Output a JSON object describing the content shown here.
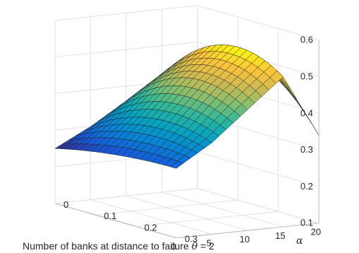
{
  "chart_data": {
    "type": "surface",
    "xlabel_prefix": "Number of banks at distance to failure",
    "xlabel_symbol": "θ",
    "xlabel_suffix": " = 2",
    "ylabel": "α",
    "x_ticks": [
      20,
      15,
      10,
      5,
      0
    ],
    "x_tick_labels": [
      "20",
      "15",
      "10",
      "5",
      "0"
    ],
    "y_ticks": [
      0,
      0.1,
      0.2,
      0.3
    ],
    "y_tick_labels": [
      "0",
      "0.1",
      "0.2",
      "0.3"
    ],
    "z_ticks": [
      0.1,
      0.2,
      0.3,
      0.4,
      0.5,
      0.6
    ],
    "z_tick_labels": [
      "0.1",
      "0.2",
      "0.3",
      "0.4",
      "0.5",
      "0.6"
    ],
    "xlim": [
      0,
      20
    ],
    "ylim": [
      0,
      0.3
    ],
    "zlim": [
      0.1,
      0.6
    ],
    "grid": true,
    "colormap": "parula",
    "alpha_values": [
      0,
      0.015,
      0.03,
      0.045,
      0.06,
      0.075,
      0.09,
      0.105,
      0.12,
      0.135,
      0.15,
      0.165,
      0.18,
      0.195,
      0.21,
      0.225,
      0.24,
      0.255,
      0.27,
      0.285,
      0.3
    ],
    "edge_profiles": [
      {
        "alpha": 0,
        "n": [
          0,
          5,
          10,
          15,
          20
        ],
        "z": [
          0.25,
          0.3,
          0.36,
          0.42,
          0.45
        ]
      },
      {
        "alpha": 0.15,
        "n": [
          0,
          5,
          10,
          15,
          20
        ],
        "z": [
          0.28,
          0.37,
          0.47,
          0.55,
          0.49
        ]
      },
      {
        "alpha": 0.3,
        "n": [
          0,
          5,
          10,
          15,
          20
        ],
        "z": [
          0.29,
          0.35,
          0.43,
          0.51,
          0.34
        ]
      }
    ]
  }
}
